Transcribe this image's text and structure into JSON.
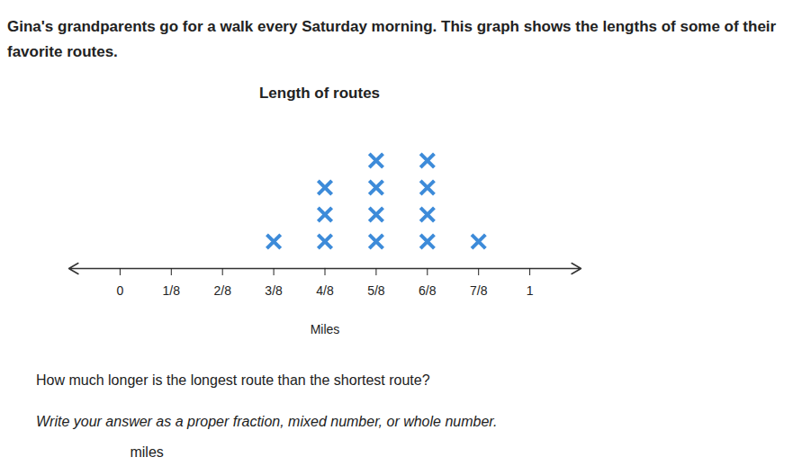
{
  "page": {
    "intro": "Gina's grandparents go for a walk every Saturday morning. This graph shows the lengths of some of their favorite routes.",
    "question": "How much longer is the longest route than the shortest route?",
    "instructions": "Write your answer as a proper fraction, mixed number, or whole number.",
    "answer_unit": "miles"
  },
  "chart_data": {
    "type": "dot_plot",
    "title": "Length of routes",
    "x_label": "Miles",
    "x": [
      0.375,
      0.5,
      0.625,
      0.75,
      0.875
    ],
    "counts": [
      1,
      3,
      4,
      4,
      1
    ],
    "color": "#3d8bd9",
    "marker": "x",
    "xlim": [
      -0.125,
      1.125
    ],
    "xticks": [
      0,
      {
        "value": 0.125,
        "label": "1/8"
      },
      {
        "value": 0.25,
        "label": "2/8"
      },
      {
        "value": 0.375,
        "label": "3/8"
      },
      {
        "value": 0.5,
        "label": "4/8"
      },
      {
        "value": 0.625,
        "label": "5/8"
      },
      {
        "value": 0.75,
        "label": "6/8"
      },
      {
        "value": 0.875,
        "label": "7/8"
      },
      1
    ],
    "tick_labels": "x"
  }
}
